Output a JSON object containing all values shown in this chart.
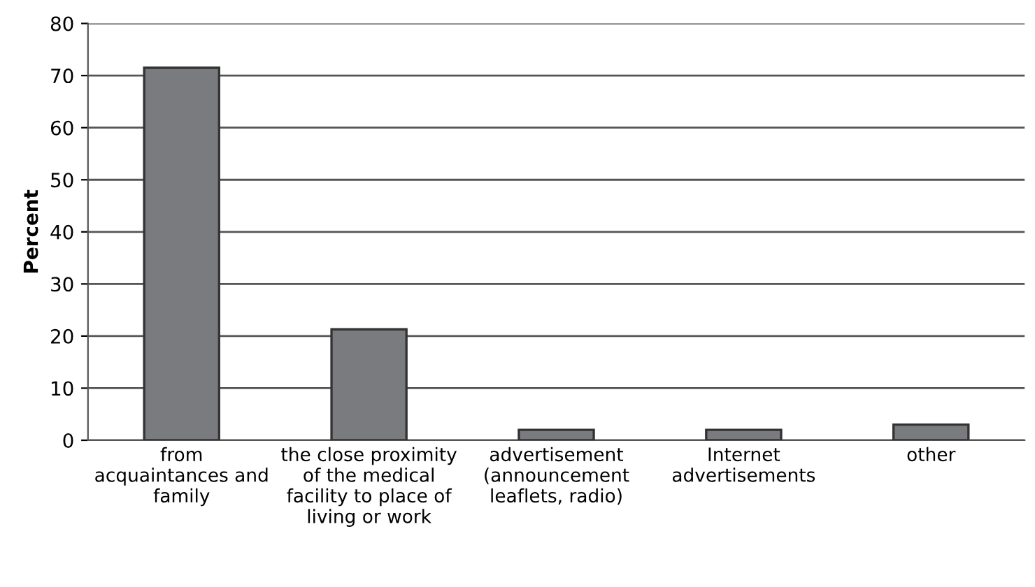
{
  "chart_data": {
    "type": "bar",
    "ylabel": "Percent",
    "categories": [
      "from\nacquaintances and\nfamily",
      "the close proximity\nof the medical\nfacility to place of\nliving or work",
      "advertisement\n(announcement\nleaflets, radio)",
      "Internet\nadvertisements",
      "other"
    ],
    "values": [
      71.5,
      21.3,
      2,
      2,
      3
    ],
    "color": "#7a7b7e",
    "ylim": [
      0,
      80
    ],
    "yticks": [
      0,
      10,
      20,
      30,
      40,
      50,
      60,
      70,
      80
    ],
    "grid": "y"
  }
}
